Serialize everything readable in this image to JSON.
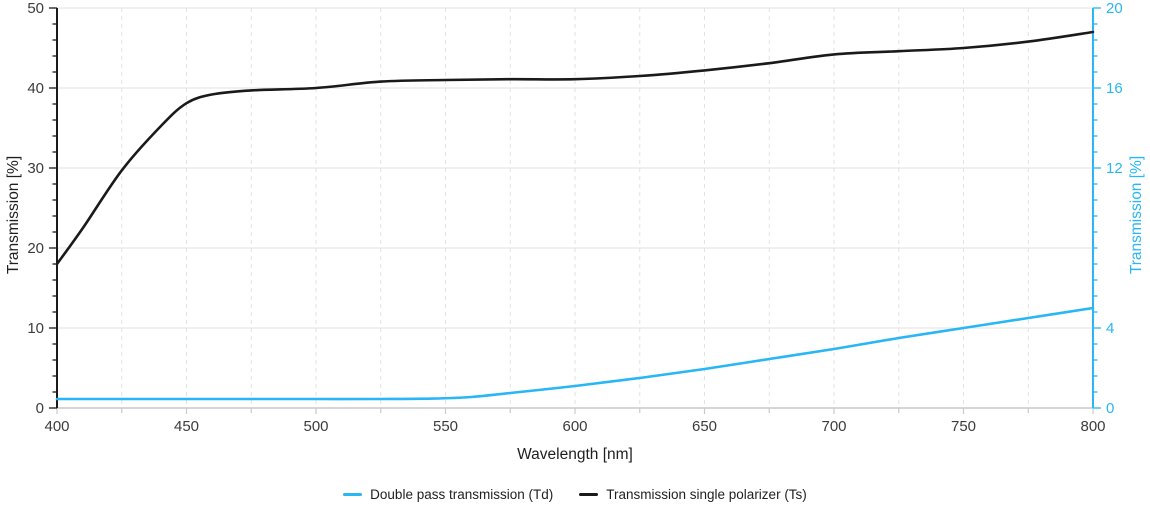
{
  "chart_data": {
    "type": "line",
    "title": "",
    "xlabel": "Wavelength [nm]",
    "grid": {
      "horizontal": "solid",
      "vertical": "dashed",
      "grid_color": "#e2e2e2"
    },
    "legend_position": "bottom",
    "x_axis": {
      "min": 400,
      "max": 800,
      "major_step": 50,
      "minor_step": 25,
      "tick_labels": [
        "400",
        "450",
        "500",
        "550",
        "600",
        "650",
        "700",
        "750",
        "800"
      ],
      "line_color": "#c9c9c9",
      "text_color": "#3c3c3c"
    },
    "left_axis": {
      "label": "Transmission [%]",
      "min": 0,
      "max": 50,
      "major_step": 10,
      "minor_step": 2,
      "tick_labels": [
        "0",
        "10",
        "20",
        "30",
        "40",
        "50"
      ],
      "line_color": "#1a1a1a",
      "text_color": "#3c3c3c"
    },
    "right_axis": {
      "label": "Transmission [%]",
      "min": 0,
      "max": 20,
      "major_step": 4,
      "minor_step": 0.8,
      "tick_labels": [
        "0",
        "4",
        "8",
        "12",
        "16",
        "20"
      ],
      "line_color": "#29b6f6",
      "text_color": "#29b6f6"
    },
    "series": [
      {
        "name": "Double pass transmission (Td)",
        "axis": "right",
        "color": "#29b6f6",
        "x": [
          400,
          425,
          450,
          475,
          500,
          525,
          545,
          560,
          575,
          600,
          625,
          650,
          675,
          700,
          725,
          750,
          775,
          800
        ],
        "y": [
          0.45,
          0.45,
          0.45,
          0.45,
          0.45,
          0.45,
          0.47,
          0.55,
          0.75,
          1.1,
          1.5,
          1.95,
          2.45,
          2.95,
          3.5,
          4.0,
          4.5,
          5.0
        ]
      },
      {
        "name": "Transmission single polarizer (Ts)",
        "axis": "left",
        "color": "#1a1a1a",
        "x": [
          400,
          410,
          425,
          440,
          450,
          460,
          475,
          500,
          525,
          550,
          575,
          600,
          625,
          650,
          675,
          700,
          725,
          750,
          775,
          800
        ],
        "y": [
          18.0,
          22.5,
          29.7,
          35.2,
          38.1,
          39.2,
          39.7,
          40.0,
          40.8,
          41.0,
          41.1,
          41.1,
          41.5,
          42.2,
          43.1,
          44.2,
          44.6,
          45.0,
          45.8,
          47.0
        ]
      }
    ]
  }
}
